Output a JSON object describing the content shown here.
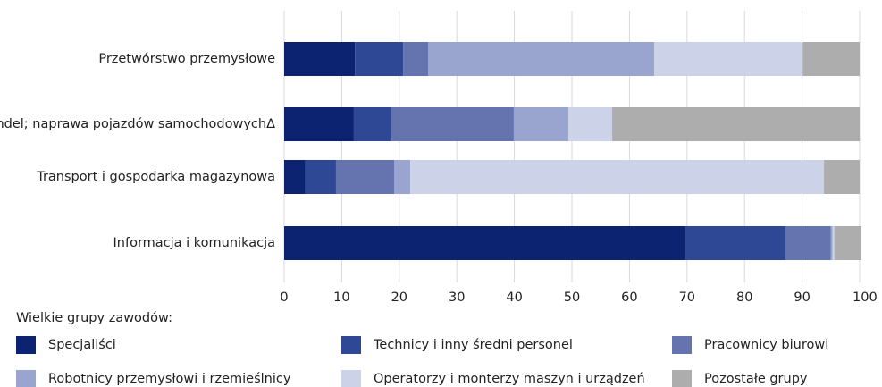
{
  "chart_data": {
    "type": "stacked_bar_horizontal",
    "categories": [
      "Przetwórstwo przemysłowe",
      "Handel; naprawa pojazdów samochodowychΔ",
      "Transport i gospodarka magazynowa",
      "Informacja i komunikacja"
    ],
    "series": [
      {
        "name": "Specjaliści",
        "color": "#0b2370",
        "values": [
          12.3,
          12.1,
          3.7,
          69.7
        ]
      },
      {
        "name": "Technicy i inny średni personel",
        "color": "#2e4896",
        "values": [
          8.4,
          6.4,
          5.3,
          17.4
        ]
      },
      {
        "name": "Pracownicy biurowi",
        "color": "#6574ae",
        "values": [
          4.3,
          21.4,
          10.1,
          7.9
        ]
      },
      {
        "name": "Robotnicy przemysłowi i rzemieślnicy",
        "color": "#99a5cf",
        "values": [
          39.3,
          9.5,
          2.8,
          0.3
        ]
      },
      {
        "name": "Operatorzy i monterzy maszyn i urządzeń",
        "color": "#ccd2e7",
        "values": [
          25.8,
          7.6,
          71.9,
          0.3
        ]
      },
      {
        "name": "Pozostałe grupy",
        "color": "#adadad",
        "values": [
          9.9,
          43.0,
          6.2,
          4.7
        ]
      }
    ],
    "xlim": [
      0,
      100
    ],
    "xticks": [
      0,
      10,
      20,
      30,
      40,
      50,
      60,
      70,
      80,
      90,
      {
        "value": 100,
        "label": "100 %"
      }
    ],
    "grid": true,
    "legend_title": "Wielkie grupy zawodów:"
  }
}
